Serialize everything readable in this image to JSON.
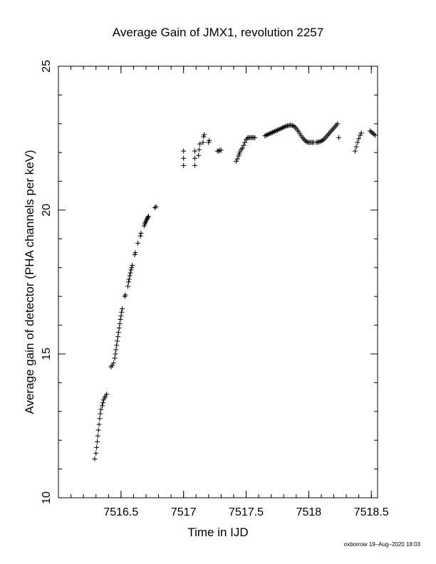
{
  "chart_data": {
    "type": "scatter",
    "title": "Average Gain of JMX1, revolution 2257",
    "xlabel": "Time in IJD",
    "ylabel": "Average gain of detector (PHA channels per keV)",
    "xlim": [
      7516.0,
      7518.55
    ],
    "ylim": [
      10,
      25
    ],
    "x_ticks": [
      7516.5,
      7517,
      7517.5,
      7518,
      7518.5
    ],
    "x_tick_labels": [
      "7516.5",
      "7517",
      "7517.5",
      "7518",
      "7518.5"
    ],
    "y_ticks": [
      10,
      15,
      20,
      25
    ],
    "y_tick_labels": [
      "10",
      "15",
      "20",
      "25"
    ],
    "grid": false,
    "marker": "+",
    "color": "#000000",
    "series": [
      {
        "points": [
          [
            7516.29,
            11.35
          ],
          [
            7516.3,
            11.55
          ],
          [
            7516.305,
            11.75
          ],
          [
            7516.31,
            11.95
          ],
          [
            7516.315,
            12.15
          ],
          [
            7516.32,
            12.35
          ],
          [
            7516.325,
            12.55
          ],
          [
            7516.33,
            12.75
          ],
          [
            7516.335,
            12.92
          ],
          [
            7516.34,
            13.07
          ],
          [
            7516.35,
            13.2
          ],
          [
            7516.355,
            13.3
          ],
          [
            7516.36,
            13.4
          ],
          [
            7516.37,
            13.47
          ],
          [
            7516.375,
            13.53
          ],
          [
            7516.385,
            13.6
          ],
          [
            7516.42,
            14.55
          ],
          [
            7516.43,
            14.6
          ],
          [
            7516.44,
            14.68
          ],
          [
            7516.45,
            14.85
          ],
          [
            7516.455,
            15.0
          ],
          [
            7516.46,
            15.15
          ],
          [
            7516.465,
            15.3
          ],
          [
            7516.47,
            15.45
          ],
          [
            7516.475,
            15.6
          ],
          [
            7516.48,
            15.75
          ],
          [
            7516.485,
            15.9
          ],
          [
            7516.49,
            16.05
          ],
          [
            7516.495,
            16.2
          ],
          [
            7516.5,
            16.32
          ],
          [
            7516.505,
            16.45
          ],
          [
            7516.51,
            16.57
          ],
          [
            7516.53,
            17.0
          ],
          [
            7516.535,
            17.05
          ],
          [
            7516.555,
            17.35
          ],
          [
            7516.56,
            17.5
          ],
          [
            7516.565,
            17.6
          ],
          [
            7516.57,
            17.72
          ],
          [
            7516.575,
            17.82
          ],
          [
            7516.58,
            17.92
          ],
          [
            7516.585,
            18.0
          ],
          [
            7516.59,
            18.08
          ],
          [
            7516.61,
            18.45
          ],
          [
            7516.615,
            18.52
          ],
          [
            7516.635,
            18.85
          ],
          [
            7516.655,
            19.1
          ],
          [
            7516.66,
            19.2
          ],
          [
            7516.685,
            19.45
          ],
          [
            7516.69,
            19.52
          ],
          [
            7516.695,
            19.57
          ],
          [
            7516.7,
            19.62
          ],
          [
            7516.705,
            19.67
          ],
          [
            7516.71,
            19.71
          ],
          [
            7516.715,
            19.75
          ],
          [
            7516.72,
            19.78
          ],
          [
            7516.77,
            20.08
          ],
          [
            7516.78,
            20.12
          ],
          [
            7517.0,
            21.55
          ],
          [
            7517.0,
            21.8
          ],
          [
            7517.0,
            22.05
          ],
          [
            7517.09,
            21.55
          ],
          [
            7517.09,
            21.8
          ],
          [
            7517.09,
            22.05
          ],
          [
            7517.12,
            21.9
          ],
          [
            7517.125,
            22.1
          ],
          [
            7517.13,
            22.3
          ],
          [
            7517.155,
            22.35
          ],
          [
            7517.16,
            22.55
          ],
          [
            7517.165,
            22.62
          ],
          [
            7517.2,
            22.35
          ],
          [
            7517.205,
            22.42
          ],
          [
            7517.27,
            22.05
          ],
          [
            7517.28,
            22.05
          ],
          [
            7517.29,
            22.08
          ],
          [
            7517.3,
            22.08
          ],
          [
            7517.42,
            21.7
          ],
          [
            7517.43,
            21.78
          ],
          [
            7517.44,
            21.88
          ],
          [
            7517.445,
            21.95
          ],
          [
            7517.45,
            22.02
          ],
          [
            7517.46,
            22.1
          ],
          [
            7517.47,
            22.15
          ],
          [
            7517.48,
            22.25
          ],
          [
            7517.49,
            22.35
          ],
          [
            7517.5,
            22.45
          ],
          [
            7517.51,
            22.5
          ],
          [
            7517.52,
            22.52
          ],
          [
            7517.53,
            22.52
          ],
          [
            7517.54,
            22.52
          ],
          [
            7517.55,
            22.52
          ],
          [
            7517.56,
            22.52
          ],
          [
            7517.57,
            22.52
          ],
          [
            7517.65,
            22.58
          ],
          [
            7517.66,
            22.6
          ],
          [
            7517.67,
            22.62
          ],
          [
            7517.68,
            22.64
          ],
          [
            7517.69,
            22.66
          ],
          [
            7517.7,
            22.68
          ],
          [
            7517.71,
            22.7
          ],
          [
            7517.72,
            22.72
          ],
          [
            7517.73,
            22.74
          ],
          [
            7517.74,
            22.76
          ],
          [
            7517.75,
            22.78
          ],
          [
            7517.76,
            22.8
          ],
          [
            7517.77,
            22.82
          ],
          [
            7517.78,
            22.84
          ],
          [
            7517.79,
            22.86
          ],
          [
            7517.8,
            22.88
          ],
          [
            7517.81,
            22.9
          ],
          [
            7517.82,
            22.92
          ],
          [
            7517.83,
            22.93
          ],
          [
            7517.84,
            22.94
          ],
          [
            7517.85,
            22.95
          ],
          [
            7517.86,
            22.95
          ],
          [
            7517.87,
            22.94
          ],
          [
            7517.88,
            22.92
          ],
          [
            7517.89,
            22.89
          ],
          [
            7517.9,
            22.84
          ],
          [
            7517.91,
            22.78
          ],
          [
            7517.92,
            22.72
          ],
          [
            7517.93,
            22.65
          ],
          [
            7517.94,
            22.58
          ],
          [
            7517.95,
            22.52
          ],
          [
            7517.96,
            22.47
          ],
          [
            7517.97,
            22.42
          ],
          [
            7517.98,
            22.38
          ],
          [
            7517.99,
            22.36
          ],
          [
            7518.0,
            22.35
          ],
          [
            7518.01,
            22.35
          ],
          [
            7518.02,
            22.35
          ],
          [
            7518.03,
            22.35
          ],
          [
            7518.04,
            22.35
          ],
          [
            7518.06,
            22.35
          ],
          [
            7518.07,
            22.36
          ],
          [
            7518.08,
            22.37
          ],
          [
            7518.09,
            22.38
          ],
          [
            7518.1,
            22.4
          ],
          [
            7518.11,
            22.42
          ],
          [
            7518.12,
            22.45
          ],
          [
            7518.13,
            22.5
          ],
          [
            7518.14,
            22.55
          ],
          [
            7518.15,
            22.6
          ],
          [
            7518.16,
            22.65
          ],
          [
            7518.17,
            22.7
          ],
          [
            7518.18,
            22.75
          ],
          [
            7518.19,
            22.8
          ],
          [
            7518.2,
            22.85
          ],
          [
            7518.21,
            22.9
          ],
          [
            7518.22,
            22.95
          ],
          [
            7518.23,
            23.0
          ],
          [
            7518.24,
            22.52
          ],
          [
            7518.37,
            22.05
          ],
          [
            7518.38,
            22.2
          ],
          [
            7518.39,
            22.35
          ],
          [
            7518.4,
            22.48
          ],
          [
            7518.41,
            22.6
          ],
          [
            7518.42,
            22.68
          ],
          [
            7518.49,
            22.75
          ],
          [
            7518.5,
            22.72
          ],
          [
            7518.51,
            22.68
          ],
          [
            7518.52,
            22.64
          ],
          [
            7518.53,
            22.6
          ]
        ]
      }
    ]
  },
  "footer": {
    "credit": "oxborrow 19–Aug–2020 18:03"
  }
}
